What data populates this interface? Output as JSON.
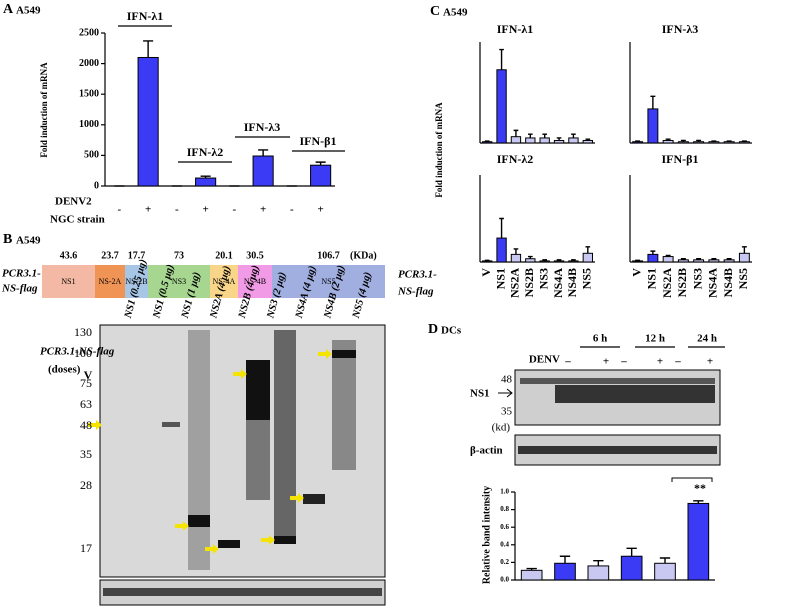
{
  "chart_data": [
    {
      "type": "bar",
      "panel": "A",
      "subtitle": "A549",
      "ylabel": "Fold induction of mRNA",
      "categories": [
        "-",
        "+",
        "-",
        "+",
        "-",
        "+",
        "-",
        "+"
      ],
      "values": [
        0,
        2100,
        0,
        130,
        0,
        490,
        0,
        340
      ],
      "errors": [
        0,
        270,
        0,
        30,
        0,
        100,
        0,
        50
      ],
      "annotations": [
        "IFN-λ1",
        "IFN-λ2",
        "IFN-λ3",
        "IFN-β1"
      ],
      "row_labels": [
        "DENV2",
        "NGC strain"
      ],
      "color": "#3b3bf5",
      "ylim": [
        0,
        2500
      ],
      "yticks": [
        0,
        500,
        1000,
        1500,
        2000,
        2500
      ]
    },
    {
      "type": "bar",
      "panel": "C",
      "subtitle": "A549",
      "title": "IFN-λ1",
      "ylabel": "Fold induction of mRNA",
      "values": [
        1,
        58,
        5,
        4,
        4,
        2,
        4,
        2
      ],
      "errors": [
        0.5,
        16,
        5,
        3,
        3,
        2,
        3,
        1
      ],
      "colors": [
        "#3b3bf5",
        "#3b3bf5",
        "#c8c8f2",
        "#c8c8f2",
        "#c8c8f2",
        "#c8c8f2",
        "#c8c8f2",
        "#c8c8f2"
      ],
      "ylim": [
        0,
        80
      ]
    },
    {
      "type": "bar",
      "title": "IFN-λ3",
      "values": [
        1,
        27,
        2,
        1,
        1,
        1,
        1,
        1
      ],
      "errors": [
        0.5,
        10,
        1,
        1,
        1,
        0.5,
        0.5,
        0.5
      ],
      "colors": [
        "#3b3bf5",
        "#3b3bf5",
        "#c8c8f2",
        "#c8c8f2",
        "#c8c8f2",
        "#c8c8f2",
        "#c8c8f2",
        "#c8c8f2"
      ],
      "ylim": [
        0,
        80
      ]
    },
    {
      "type": "bar",
      "title": "IFN-λ2",
      "row_labels": [
        "PCR3.1-",
        "NS-flag"
      ],
      "categories": [
        "V",
        "NS1",
        "NS2A",
        "NS2B",
        "NS3",
        "NS4A",
        "NS4B",
        "NS5"
      ],
      "values": [
        1,
        22,
        7,
        3,
        1,
        1,
        1,
        8
      ],
      "errors": [
        0.5,
        18,
        5,
        2,
        1,
        1,
        1,
        6
      ],
      "colors": [
        "#3b3bf5",
        "#3b3bf5",
        "#c8c8f2",
        "#c8c8f2",
        "#c8c8f2",
        "#c8c8f2",
        "#c8c8f2",
        "#c8c8f2"
      ],
      "ylim": [
        0,
        80
      ]
    },
    {
      "type": "bar",
      "title": "IFN-β1",
      "categories": [
        "V",
        "NS1",
        "NS2A",
        "NS2B",
        "NS3",
        "NS4A",
        "NS4B",
        "NS5"
      ],
      "values": [
        1,
        7,
        5,
        2,
        2,
        2,
        2,
        8
      ],
      "errors": [
        0.5,
        3,
        1,
        1,
        1,
        1,
        1,
        6
      ],
      "colors": [
        "#3b3bf5",
        "#3b3bf5",
        "#c8c8f2",
        "#c8c8f2",
        "#c8c8f2",
        "#c8c8f2",
        "#c8c8f2",
        "#c8c8f2"
      ],
      "ylim": [
        0,
        80
      ]
    },
    {
      "type": "bar",
      "panel": "D",
      "subtitle": "DCs",
      "ylabel": "Relative band intensity",
      "values": [
        0.11,
        0.19,
        0.16,
        0.27,
        0.19,
        0.87
      ],
      "errors": [
        0.02,
        0.08,
        0.06,
        0.09,
        0.06,
        0.03
      ],
      "colors": [
        "#c8c8f2",
        "#3b3bf5",
        "#c8c8f2",
        "#3b3bf5",
        "#c8c8f2",
        "#3b3bf5"
      ],
      "annotations": [
        "**"
      ],
      "ylim": [
        0,
        1
      ],
      "yticks": [
        {
          "value": 0,
          "label": "0.0"
        },
        {
          "value": 0.2,
          "label": "0.2"
        },
        {
          "value": 0.4,
          "label": "0.4"
        },
        {
          "value": 0.6,
          "label": "0.6"
        },
        {
          "value": 0.8,
          "label": "0.8"
        },
        {
          "value": 1,
          "label": "1.0"
        }
      ]
    }
  ],
  "panel_b": {
    "letter": "B",
    "cell": "A549",
    "construct": [
      "PCR3.1-",
      "NS-flag"
    ],
    "proteins": [
      {
        "name": "NS1",
        "size": 43.6
      },
      {
        "name": "NS-2A",
        "size": 23.7
      },
      {
        "name": "NS-2B",
        "size": 17.7
      },
      {
        "name": "NS3",
        "size": 73
      },
      {
        "name": "NS-4A",
        "size": 20.1
      },
      {
        "name": "NS-4B",
        "size": 30.5
      },
      {
        "name": "NS5",
        "size": 106.7
      }
    ],
    "unit": "(KDa)",
    "blot_label": "PCR3.1-NS-flag",
    "doses": "(doses)",
    "lanes": [
      "V",
      "NS1 (0.25 μg)",
      "NS1 (0.5 μg)",
      "NS1 (1 μg)",
      "NS2A (4 μg)",
      "NS2B (4 μg)",
      "NS3 (2 μg)",
      "NS4A (4 μg)",
      "NS4B (2 μg)",
      "NS5 (4 μg)"
    ],
    "markers": [
      130,
      100,
      75,
      63,
      48,
      35,
      28,
      17
    ]
  },
  "panel_d_blot": {
    "times": [
      "6 h",
      "12 h",
      "24 h"
    ],
    "treatment": "DENV",
    "signs": [
      "–",
      "+",
      "–",
      "+",
      "–",
      "+"
    ],
    "target": "NS1",
    "markers": [
      48,
      35
    ],
    "unit": "(kd)",
    "control": "β-actin"
  }
}
